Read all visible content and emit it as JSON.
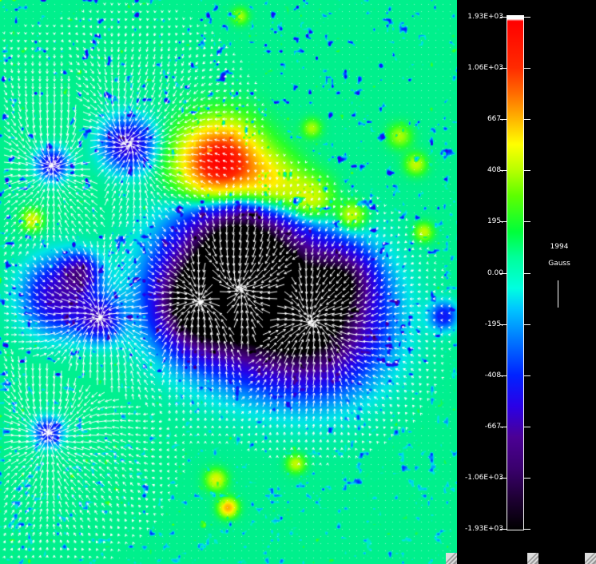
{
  "colorbar": {
    "labels": [
      "1.93E+03",
      "1.06E+03",
      "667.",
      "408.",
      "195.",
      "0.00",
      "-195.",
      "-408.",
      "-667.",
      "-1.06E+03",
      "-1.93E+03"
    ],
    "max_color": "#ffffff",
    "positive_color": "#ff0000",
    "zero_color": "#00ff90",
    "negative_color": "#4b0094",
    "min_color": "#000000"
  },
  "legend": {
    "year": "1994",
    "unit": "Gauss"
  },
  "magnetogram": {
    "background_color": "#00e676",
    "vector_color": "#ffffff"
  }
}
